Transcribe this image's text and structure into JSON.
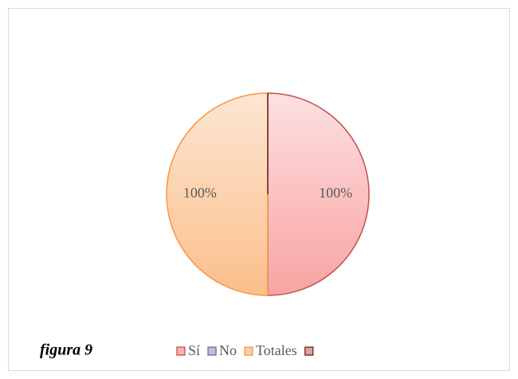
{
  "chart_data": {
    "type": "pie",
    "categories": [
      "Sí",
      "No",
      "Totales",
      null
    ],
    "values": [
      100,
      0,
      100,
      0
    ],
    "value_labels": [
      "100%",
      null,
      "100%",
      null
    ],
    "colors": [
      "#f9b4b4",
      "#c6b9dc",
      "#fbcfa5",
      "#dda3a1"
    ],
    "edge_colors": [
      "#c0504d",
      "#8064a2",
      "#f79646",
      "#632523"
    ],
    "annotation": "figura 9",
    "legend": "bottom"
  }
}
